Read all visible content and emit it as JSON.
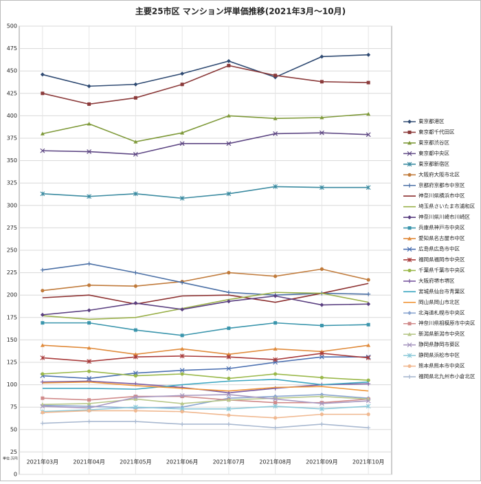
{
  "chart_data": {
    "type": "line",
    "title": "主要25市区 マンション坪単価推移(2021年3月～10月)",
    "unit_label": "単位:万円",
    "categories": [
      "2021年03月",
      "2021年04月",
      "2021年05月",
      "2021年06月",
      "2021年07月",
      "2021年08月",
      "2021年09月",
      "2021年10月"
    ],
    "ylim": [
      0,
      500
    ],
    "yticks": [
      0,
      25,
      50,
      75,
      100,
      125,
      150,
      175,
      200,
      225,
      250,
      275,
      300,
      325,
      350,
      375,
      400,
      425,
      450,
      475,
      500
    ],
    "grid": true,
    "legend": "right",
    "series": [
      {
        "name": "東京都港区",
        "color": "#2f4a72",
        "marker": "diamond",
        "values": [
          446,
          433,
          435,
          447,
          461,
          443,
          466,
          468
        ]
      },
      {
        "name": "東京都千代田区",
        "color": "#8b3a3a",
        "marker": "square",
        "values": [
          425,
          413,
          420,
          435,
          456,
          445,
          438,
          437
        ]
      },
      {
        "name": "東京都渋谷区",
        "color": "#7f9a3a",
        "marker": "triangle",
        "values": [
          380,
          391,
          371,
          381,
          400,
          397,
          398,
          402
        ]
      },
      {
        "name": "東京都中央区",
        "color": "#5d4683",
        "marker": "x",
        "values": [
          361,
          360,
          357,
          369,
          369,
          380,
          381,
          379
        ]
      },
      {
        "name": "東京都新宿区",
        "color": "#3a8aa0",
        "marker": "star",
        "values": [
          313,
          310,
          313,
          308,
          313,
          321,
          320,
          320
        ]
      },
      {
        "name": "大阪府大阪市北区",
        "color": "#c07a3a",
        "marker": "circle",
        "values": [
          205,
          211,
          210,
          215,
          225,
          221,
          229,
          217
        ]
      },
      {
        "name": "京都府京都市中京区",
        "color": "#4a6fa5",
        "marker": "plus",
        "values": [
          228,
          235,
          225,
          214,
          203,
          200,
          202,
          201
        ]
      },
      {
        "name": "神奈川県横浜市中区",
        "color": "#8b2e2e",
        "marker": "none",
        "values": [
          197,
          200,
          190,
          199,
          200,
          192,
          202,
          213
        ]
      },
      {
        "name": "埼玉県さいたま市浦和区",
        "color": "#9ab04a",
        "marker": "none",
        "values": [
          177,
          173,
          175,
          185,
          195,
          203,
          202,
          192
        ]
      },
      {
        "name": "神奈川県川崎市川崎区",
        "color": "#5a3f80",
        "marker": "diamond",
        "values": [
          178,
          183,
          191,
          184,
          193,
          199,
          189,
          190
        ]
      },
      {
        "name": "兵庫県神戸市中央区",
        "color": "#3a95ac",
        "marker": "square",
        "values": [
          169,
          169,
          161,
          155,
          163,
          169,
          166,
          167
        ]
      },
      {
        "name": "愛知県名古屋市中区",
        "color": "#e08a3a",
        "marker": "triangle",
        "values": [
          144,
          141,
          134,
          140,
          134,
          140,
          137,
          144
        ]
      },
      {
        "name": "広島県広島市中区",
        "color": "#4a6fb0",
        "marker": "x",
        "values": [
          110,
          107,
          113,
          116,
          118,
          125,
          131,
          131
        ]
      },
      {
        "name": "福岡県福岡市中央区",
        "color": "#a83a3a",
        "marker": "star",
        "values": [
          130,
          126,
          131,
          132,
          131,
          128,
          135,
          130
        ]
      },
      {
        "name": "千葉県千葉市中央区",
        "color": "#9ab84a",
        "marker": "circle",
        "values": [
          112,
          115,
          110,
          112,
          107,
          112,
          108,
          105
        ]
      },
      {
        "name": "大阪府堺市堺区",
        "color": "#7a5aa0",
        "marker": "plus",
        "values": [
          103,
          104,
          101,
          97,
          91,
          96,
          100,
          101
        ]
      },
      {
        "name": "宮城県仙台市青葉区",
        "color": "#3aa5c0",
        "marker": "none",
        "values": [
          96,
          96,
          95,
          100,
          104,
          106,
          100,
          103
        ]
      },
      {
        "name": "岡山県岡山市北区",
        "color": "#f0963a",
        "marker": "none",
        "values": [
          102,
          103,
          99,
          96,
          93,
          97,
          98,
          93
        ]
      },
      {
        "name": "北海道札幌市中央区",
        "color": "#8aa5d0",
        "marker": "diamond",
        "values": [
          77,
          76,
          74,
          75,
          85,
          87,
          89,
          85
        ]
      },
      {
        "name": "神奈川県相模原市中央区",
        "color": "#d08a8a",
        "marker": "square",
        "values": [
          85,
          83,
          87,
          87,
          83,
          80,
          80,
          84
        ]
      },
      {
        "name": "新潟県新潟市中央区",
        "color": "#b8c88a",
        "marker": "triangle",
        "values": [
          78,
          79,
          84,
          79,
          83,
          85,
          87,
          84
        ]
      },
      {
        "name": "静岡県静岡市葵区",
        "color": "#a898c0",
        "marker": "x",
        "values": [
          76,
          74,
          86,
          88,
          89,
          84,
          79,
          82
        ]
      },
      {
        "name": "静岡県浜松市中区",
        "color": "#8ac8d8",
        "marker": "star",
        "values": [
          70,
          72,
          75,
          73,
          73,
          76,
          73,
          76
        ]
      },
      {
        "name": "熊本県熊本市中央区",
        "color": "#f0b890",
        "marker": "circle",
        "values": [
          69,
          71,
          71,
          70,
          66,
          63,
          67,
          67
        ]
      },
      {
        "name": "福岡県北九州市小倉北区",
        "color": "#a8b8d0",
        "marker": "plus",
        "values": [
          57,
          59,
          59,
          56,
          56,
          52,
          56,
          52
        ]
      }
    ]
  }
}
